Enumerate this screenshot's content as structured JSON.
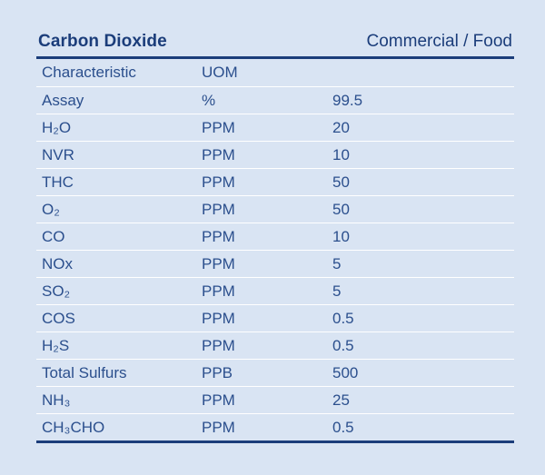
{
  "table": {
    "title": "Carbon Dioxide",
    "grade": "Commercial / Food",
    "columns": [
      "Characteristic",
      "UOM",
      ""
    ],
    "rows": [
      {
        "characteristic": "Assay",
        "uom": "%",
        "value": "99.5"
      },
      {
        "characteristic": "H₂O",
        "uom": "PPM",
        "value": "20"
      },
      {
        "characteristic": "NVR",
        "uom": "PPM",
        "value": "10"
      },
      {
        "characteristic": "THC",
        "uom": "PPM",
        "value": "50"
      },
      {
        "characteristic": "O₂",
        "uom": "PPM",
        "value": "50"
      },
      {
        "characteristic": "CO",
        "uom": "PPM",
        "value": "10"
      },
      {
        "characteristic": "NOx",
        "uom": "PPM",
        "value": "5"
      },
      {
        "characteristic": "SO₂",
        "uom": "PPM",
        "value": "5"
      },
      {
        "characteristic": "COS",
        "uom": "PPM",
        "value": "0.5"
      },
      {
        "characteristic": "H₂S",
        "uom": "PPM",
        "value": "0.5"
      },
      {
        "characteristic": "Total Sulfurs",
        "uom": "PPB",
        "value": "500"
      },
      {
        "characteristic": "NH₃",
        "uom": "PPM",
        "value": "25"
      },
      {
        "characteristic": "CH₃CHO",
        "uom": "PPM",
        "value": "0.5"
      }
    ]
  },
  "colors": {
    "background": "#d9e4f3",
    "text": "#2b4f8d",
    "accent": "#1b3d7a",
    "row_divider": "#ffffff"
  }
}
